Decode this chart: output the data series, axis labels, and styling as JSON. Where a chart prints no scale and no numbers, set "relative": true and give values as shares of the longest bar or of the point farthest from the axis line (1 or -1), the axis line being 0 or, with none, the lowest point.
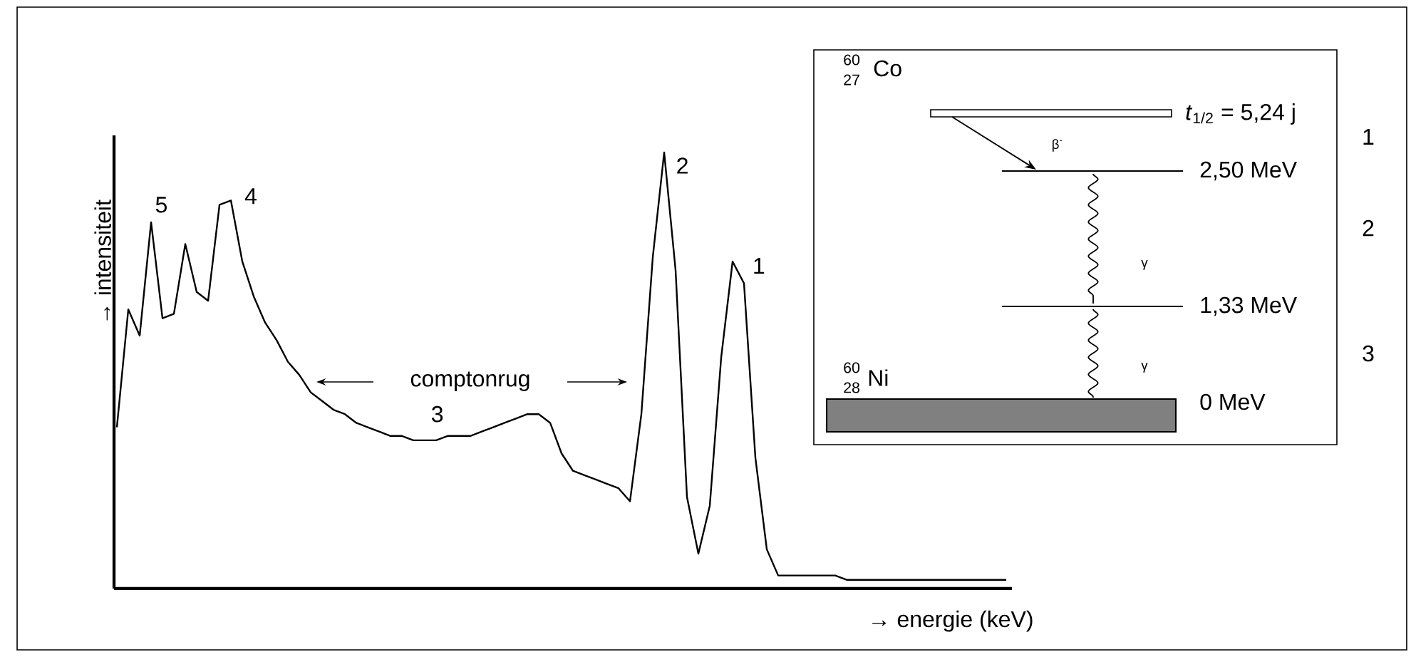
{
  "chart_data": {
    "type": "line",
    "relative": true,
    "xlabel": "→ energie (keV)",
    "ylabel": "→ intensiteit",
    "categories": [
      null,
      null,
      null,
      null,
      null,
      null,
      null,
      null,
      null,
      null,
      null,
      null,
      null,
      null,
      null,
      null,
      null,
      null,
      null,
      null,
      null,
      null,
      null,
      null,
      null,
      null,
      null,
      null,
      null,
      null,
      null,
      null,
      null,
      null,
      null,
      null,
      null,
      null,
      null,
      null,
      null,
      null,
      null,
      null,
      null,
      null,
      null,
      null,
      null,
      null,
      null,
      null,
      null,
      null,
      null,
      null,
      null,
      null,
      null,
      null,
      null,
      null,
      null,
      null,
      null,
      null,
      null,
      null,
      null,
      null,
      null,
      null,
      null,
      null,
      null,
      null,
      null,
      null,
      null
    ],
    "series": [
      {
        "color": "#000000",
        "values": [
          0.37,
          0.64,
          0.58,
          0.84,
          0.62,
          0.63,
          0.79,
          0.68,
          0.66,
          0.88,
          0.89,
          0.75,
          0.67,
          0.61,
          0.57,
          0.52,
          0.49,
          0.45,
          0.43,
          0.41,
          0.4,
          0.38,
          0.37,
          0.36,
          0.35,
          0.35,
          0.34,
          0.34,
          0.34,
          0.35,
          0.35,
          0.35,
          0.36,
          0.37,
          0.38,
          0.39,
          0.4,
          0.4,
          0.38,
          0.31,
          0.27,
          0.26,
          0.25,
          0.24,
          0.23,
          0.2,
          0.4,
          0.76,
          1,
          0.73,
          0.21,
          0.08,
          0.19,
          0.53,
          0.75,
          0.7,
          0.3,
          0.09,
          0.03,
          0.03,
          0.03,
          0.03,
          0.03,
          0.03,
          0.02,
          0.02,
          0.02,
          0.02,
          0.02,
          0.02,
          0.02,
          0.02,
          0.02,
          0.02,
          0.02,
          0.02,
          0.02,
          0.02,
          0.02
        ]
      }
    ],
    "annotations": [
      "5",
      "4",
      "3",
      "2",
      "1",
      "comptonrug",
      "60",
      "27",
      "Co",
      "*t*$_{1/2}$ = 5,24 j",
      "β$^{-}$",
      "2,50 MeV",
      "γ",
      "1,33 MeV",
      "γ",
      "0 MeV",
      "60",
      "28",
      "Ni",
      "1",
      "2",
      "3"
    ]
  }
}
